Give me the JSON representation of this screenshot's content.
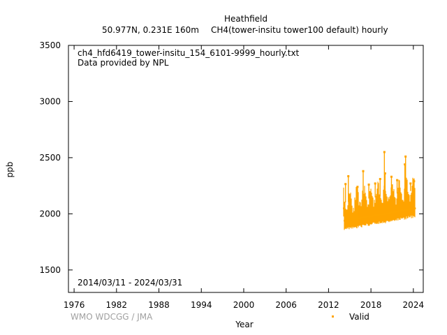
{
  "header": {
    "site": "Heathfield",
    "location": "50.977N, 0.231E 160m",
    "species": "CH4(tower-insitu tower100 default) hourly"
  },
  "plot_info": {
    "filename": "ch4_hfd6419_tower-insitu_154_6101-9999_hourly.txt",
    "provider": "Data provided by NPL",
    "period": "2014/03/11 - 2024/03/31"
  },
  "credit": "WMO WDCGG / JMA",
  "colors": {
    "valid": "#ffa500",
    "axis": "#000000",
    "credit": "#a0a0a0"
  },
  "chart_data": {
    "type": "scatter",
    "xlabel": "Year",
    "ylabel": "ppb",
    "xlim": [
      1975.2,
      2025.4
    ],
    "ylim": [
      1300,
      3500
    ],
    "xticks": [
      1976,
      1982,
      1988,
      1994,
      2000,
      2006,
      2012,
      2018,
      2024
    ],
    "yticks": [
      1500,
      2000,
      2500,
      3000,
      3500
    ],
    "grid": false,
    "legend": "bottom-right",
    "series": [
      {
        "name": "Valid",
        "color": "#ffa500",
        "x_range": [
          2014.19,
          2024.25
        ],
        "baseline": [
          [
            2014.2,
            1900
          ],
          [
            2016.0,
            1915
          ],
          [
            2018.0,
            1940
          ],
          [
            2020.0,
            1960
          ],
          [
            2022.0,
            1985
          ],
          [
            2024.25,
            2010
          ]
        ],
        "typical_low": [
          1840,
          1970
        ],
        "typical_high": [
          2150,
          2250
        ],
        "spikes": [
          {
            "x": 2014.4,
            "y": 2265
          },
          {
            "x": 2014.8,
            "y": 2335
          },
          {
            "x": 2016.1,
            "y": 2240
          },
          {
            "x": 2016.9,
            "y": 2380
          },
          {
            "x": 2017.7,
            "y": 2260
          },
          {
            "x": 2018.6,
            "y": 2270
          },
          {
            "x": 2019.3,
            "y": 2310
          },
          {
            "x": 2019.9,
            "y": 2550
          },
          {
            "x": 2020.0,
            "y": 2360
          },
          {
            "x": 2020.9,
            "y": 2330
          },
          {
            "x": 2021.7,
            "y": 2300
          },
          {
            "x": 2022.8,
            "y": 2440
          },
          {
            "x": 2022.9,
            "y": 2510
          },
          {
            "x": 2023.6,
            "y": 2270
          },
          {
            "x": 2024.1,
            "y": 2290
          }
        ]
      }
    ]
  }
}
